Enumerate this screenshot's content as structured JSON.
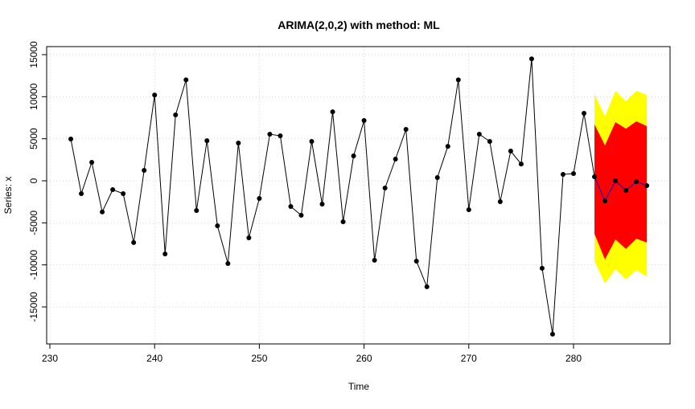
{
  "chart_data": {
    "type": "line",
    "title": "ARIMA(2,0,2) with method: ML",
    "xlabel": "Time",
    "ylabel": "Series: x",
    "xlim": [
      229.7,
      289.2
    ],
    "ylim": [
      -19000,
      15600
    ],
    "xticks": [
      230,
      240,
      250,
      260,
      270,
      280
    ],
    "yticks": [
      -15000,
      -10000,
      -5000,
      0,
      5000,
      10000,
      15000
    ],
    "grid": true,
    "colors": {
      "observed": "#000000",
      "forecast": "#0000cc",
      "band80": "#ff0000",
      "band95": "#ffff00",
      "grid": "#d3d3d3"
    },
    "observed": {
      "x": [
        232,
        233,
        234,
        235,
        236,
        237,
        238,
        239,
        240,
        241,
        242,
        243,
        244,
        245,
        246,
        247,
        248,
        249,
        250,
        251,
        252,
        253,
        254,
        255,
        256,
        257,
        258,
        259,
        260,
        261,
        262,
        263,
        264,
        265,
        266,
        267,
        268,
        269,
        270,
        271,
        272,
        273,
        274,
        275,
        276,
        277,
        278,
        279,
        280,
        281
      ],
      "y": [
        4970,
        -1530,
        2200,
        -3700,
        -1050,
        -1530,
        -7350,
        1240,
        10200,
        -8700,
        7830,
        12000,
        -3530,
        4770,
        -5350,
        -9840,
        4490,
        -6780,
        -2100,
        5540,
        5350,
        -3060,
        -4100,
        4680,
        -2770,
        8210,
        -4870,
        2960,
        7160,
        -9450,
        -860,
        2580,
        6110,
        -9550,
        -12600,
        380,
        4100,
        12000,
        -3440,
        5540,
        4680,
        -2480,
        3530,
        2000,
        14500,
        -10400,
        -18240,
        760,
        860,
        8020
      ]
    },
    "forecast": {
      "x": [
        282,
        283,
        284,
        285,
        286,
        287
      ],
      "mean": [
        480,
        -2390,
        0,
        -1150,
        -100,
        -570
      ],
      "lower80": [
        -6300,
        -9360,
        -6970,
        -8100,
        -6880,
        -7350
      ],
      "upper80": [
        6700,
        4200,
        6970,
        6200,
        7070,
        6500
      ],
      "lower95": [
        -9550,
        -12200,
        -10500,
        -11750,
        -10600,
        -11400
      ],
      "upper95": [
        10300,
        7640,
        10700,
        9450,
        10700,
        10200
      ]
    }
  }
}
